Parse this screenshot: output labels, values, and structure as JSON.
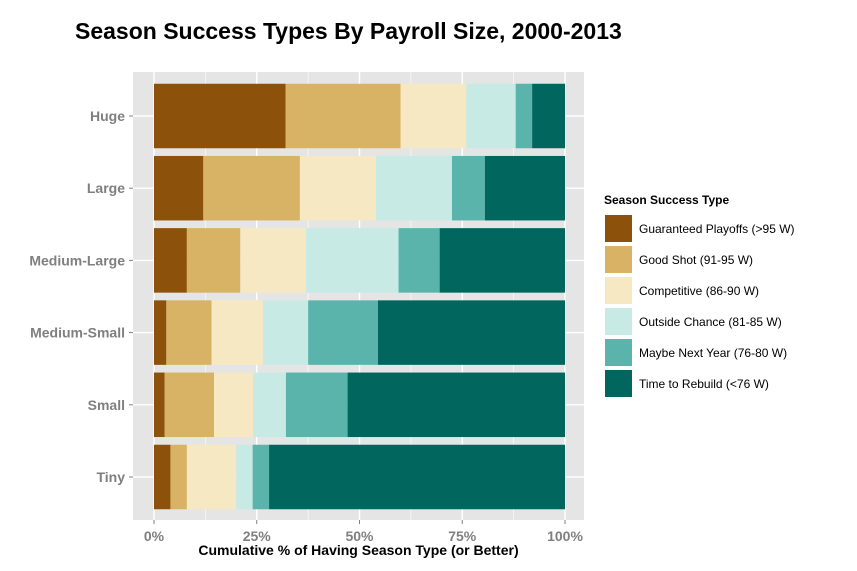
{
  "chart_data": {
    "type": "bar",
    "orientation": "horizontal",
    "stacked": true,
    "title": "Season Success Types By Payroll Size, 2000-2013",
    "xlabel": "Cumulative % of Having Season Type (or Better)",
    "ylabel": "",
    "xlim": [
      0,
      100
    ],
    "x_ticks": [
      "0%",
      "25%",
      "50%",
      "75%",
      "100%"
    ],
    "x_tick_values": [
      0,
      25,
      50,
      75,
      100
    ],
    "grid": true,
    "legend_position": "right",
    "legend_title": "Season Success Type",
    "categories": [
      "Huge",
      "Large",
      "Medium-Large",
      "Medium-Small",
      "Small",
      "Tiny"
    ],
    "series": [
      {
        "name": "Guaranteed Playoffs (>95 W)",
        "color": "#8C510A",
        "values": [
          32,
          12,
          8,
          3,
          2.6,
          4
        ]
      },
      {
        "name": "Good Shot (91-95 W)",
        "color": "#D8B365",
        "values": [
          28,
          23.5,
          13,
          11,
          12,
          4
        ]
      },
      {
        "name": "Competitive (86-90 W)",
        "color": "#F6E8C3",
        "values": [
          16,
          18.5,
          16,
          12.5,
          9.5,
          12
        ]
      },
      {
        "name": "Outside Chance (81-85 W)",
        "color": "#C7EAE5",
        "values": [
          12,
          18.5,
          22.5,
          11,
          8,
          4
        ]
      },
      {
        "name": "Maybe Next Year (76-80 W)",
        "color": "#5AB4AC",
        "values": [
          4,
          8,
          10,
          17,
          15,
          4
        ]
      },
      {
        "name": "Time to Rebuild (<76 W)",
        "color": "#01665E",
        "values": [
          8,
          19.5,
          30.5,
          45.5,
          52.9,
          72
        ]
      }
    ]
  },
  "theme": {
    "panel_bg": "#E5E5E5",
    "grid_color": "#FFFFFF",
    "tick_label_color": "#7F7F7F"
  }
}
